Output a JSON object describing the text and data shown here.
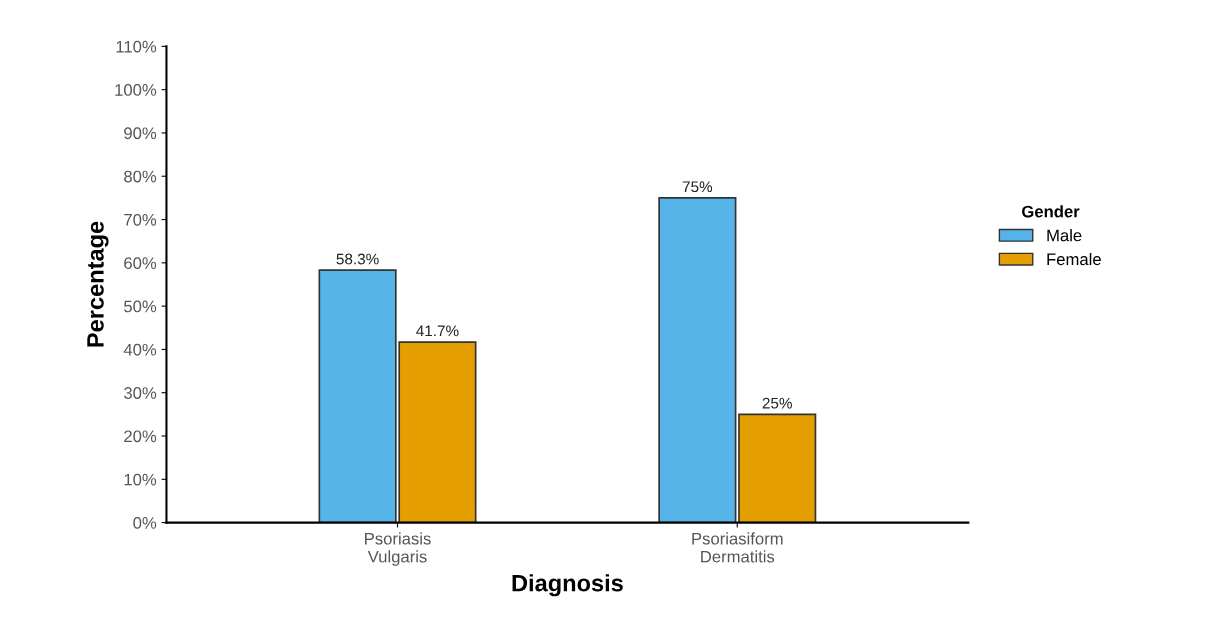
{
  "chart_data": {
    "type": "bar",
    "xlabel": "Diagnosis",
    "ylabel": "Percentage",
    "legend_title": "Gender",
    "categories": [
      "Psoriasis\nVulgaris",
      "Psoriasiform\nDermatitis"
    ],
    "series": [
      {
        "name": "Male",
        "color": "#56b4e9",
        "values": [
          58.3,
          75
        ],
        "value_labels": [
          "58.3%",
          "75%"
        ]
      },
      {
        "name": "Female",
        "color": "#e69f00",
        "values": [
          41.7,
          25
        ],
        "value_labels": [
          "41.7%",
          "25%"
        ]
      }
    ],
    "ylim": [
      0,
      110
    ],
    "yticks": [
      {
        "value": 0,
        "label": "0%"
      },
      {
        "value": 10,
        "label": "10%"
      },
      {
        "value": 20,
        "label": "20%"
      },
      {
        "value": 30,
        "label": "30%"
      },
      {
        "value": 40,
        "label": "40%"
      },
      {
        "value": 50,
        "label": "50%"
      },
      {
        "value": 60,
        "label": "60%"
      },
      {
        "value": 70,
        "label": "70%"
      },
      {
        "value": 80,
        "label": "80%"
      },
      {
        "value": 90,
        "label": "90%"
      },
      {
        "value": 100,
        "label": "100%"
      },
      {
        "value": 110,
        "label": "110%"
      }
    ],
    "grid": false,
    "legend": "right"
  }
}
